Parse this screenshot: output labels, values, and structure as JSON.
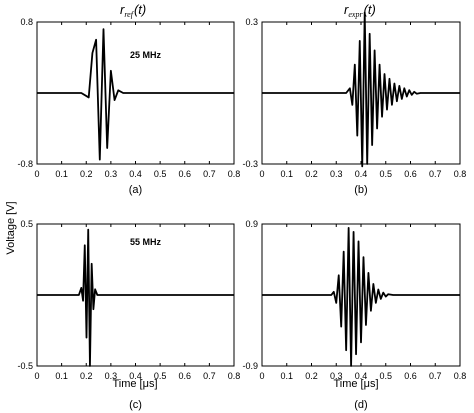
{
  "figure": {
    "ylabel": "Voltage [V]",
    "xlabel": "Time [",
    "xlabel_unit": "μs",
    "xlabel_close": "]",
    "col1_title": {
      "main": "r",
      "sub": "ref",
      "arg": "(t)"
    },
    "col2_title": {
      "main": "r",
      "sub": "expr",
      "arg": "(t)"
    }
  },
  "chart_data": [
    {
      "type": "line",
      "panel_label": "(a)",
      "annotation": "25 MHz",
      "xlim": [
        0,
        0.8
      ],
      "ylim": [
        -0.8,
        0.8
      ],
      "x_ticks": [
        "0",
        "0.1",
        "0.2",
        "0.3",
        "0.4",
        "0.5",
        "0.6",
        "0.7",
        "0.8"
      ],
      "y_ticks": [
        "0.8",
        "-0.8"
      ],
      "y_tick_values": [
        0.8,
        -0.8
      ],
      "grid": false,
      "series": [
        {
          "x": [
            0,
            0.18,
            0.21,
            0.225,
            0.24,
            0.255,
            0.27,
            0.285,
            0.3,
            0.315,
            0.33,
            0.35,
            0.8
          ],
          "values": [
            0,
            0,
            -0.05,
            0.45,
            0.6,
            -0.75,
            0.72,
            -0.62,
            0.25,
            -0.08,
            0.03,
            0,
            0
          ]
        }
      ]
    },
    {
      "type": "line",
      "panel_label": "(b)",
      "annotation": "",
      "xlim": [
        0,
        0.8
      ],
      "ylim": [
        -0.3,
        0.3
      ],
      "x_ticks": [
        "0",
        "0.1",
        "0.2",
        "0.3",
        "0.4",
        "0.5",
        "0.6",
        "0.7",
        "0.8"
      ],
      "y_ticks": [
        "0.3",
        "-0.3"
      ],
      "y_tick_values": [
        0.3,
        -0.3
      ],
      "grid": false,
      "series": [
        {
          "x": [
            0,
            0.34,
            0.355,
            0.365,
            0.375,
            0.385,
            0.395,
            0.405,
            0.415,
            0.425,
            0.435,
            0.445,
            0.455,
            0.465,
            0.475,
            0.485,
            0.495,
            0.505,
            0.515,
            0.525,
            0.535,
            0.545,
            0.555,
            0.565,
            0.575,
            0.585,
            0.595,
            0.605,
            0.615,
            0.625,
            0.64,
            0.8
          ],
          "values": [
            0,
            0,
            0.02,
            -0.05,
            0.12,
            -0.18,
            0.22,
            -0.31,
            0.34,
            -0.3,
            0.25,
            -0.22,
            0.18,
            -0.15,
            0.12,
            -0.1,
            0.08,
            -0.07,
            0.06,
            -0.05,
            0.04,
            -0.035,
            0.03,
            -0.025,
            0.02,
            -0.015,
            0.012,
            -0.008,
            0.005,
            -0.003,
            0,
            0
          ]
        }
      ]
    },
    {
      "type": "line",
      "panel_label": "(c)",
      "annotation": "55 MHz",
      "xlim": [
        0,
        0.8
      ],
      "ylim": [
        -0.5,
        0.5
      ],
      "x_ticks": [
        "0",
        "0.1",
        "0.2",
        "0.3",
        "0.4",
        "0.5",
        "0.6",
        "0.7",
        "0.8"
      ],
      "y_ticks": [
        "0.5",
        "-0.5"
      ],
      "y_tick_values": [
        0.5,
        -0.5
      ],
      "grid": false,
      "series": [
        {
          "x": [
            0,
            0.17,
            0.18,
            0.187,
            0.194,
            0.201,
            0.208,
            0.215,
            0.222,
            0.229,
            0.236,
            0.245,
            0.8
          ],
          "values": [
            0,
            0,
            0.05,
            -0.04,
            0.35,
            -0.3,
            0.46,
            -0.5,
            0.22,
            -0.1,
            0.04,
            0,
            0
          ]
        }
      ]
    },
    {
      "type": "line",
      "panel_label": "(d)",
      "annotation": "",
      "xlim": [
        0,
        0.8
      ],
      "ylim": [
        -0.9,
        0.9
      ],
      "x_ticks": [
        "0",
        "0.1",
        "0.2",
        "0.3",
        "0.4",
        "0.5",
        "0.6",
        "0.7",
        "0.8"
      ],
      "y_ticks": [
        "0.9",
        "-0.9"
      ],
      "y_tick_values": [
        0.9,
        -0.9
      ],
      "grid": false,
      "series": [
        {
          "x": [
            0,
            0.28,
            0.29,
            0.3,
            0.31,
            0.32,
            0.33,
            0.34,
            0.35,
            0.36,
            0.37,
            0.38,
            0.39,
            0.4,
            0.41,
            0.42,
            0.43,
            0.44,
            0.45,
            0.46,
            0.47,
            0.48,
            0.49,
            0.5,
            0.51,
            0.53,
            0.8
          ],
          "values": [
            0,
            0,
            0.04,
            -0.1,
            0.25,
            -0.4,
            0.55,
            -0.7,
            0.85,
            -0.9,
            0.8,
            -0.75,
            0.68,
            -0.6,
            0.48,
            -0.38,
            0.28,
            -0.2,
            0.14,
            -0.1,
            0.07,
            -0.05,
            0.03,
            -0.02,
            0.01,
            0,
            0
          ]
        }
      ]
    }
  ]
}
